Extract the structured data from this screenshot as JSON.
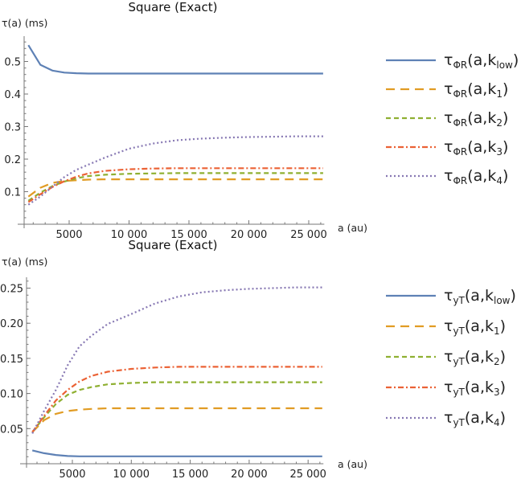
{
  "chart_data": [
    {
      "type": "line",
      "title": "Square (Exact)",
      "xlabel": "a (au)",
      "ylabel": "τ(a) (ms)",
      "xlim": [
        1300,
        26300
      ],
      "ylim": [
        0,
        0.575
      ],
      "xticks": [
        5000,
        10000,
        15000,
        20000,
        25000
      ],
      "xtick_labels": [
        "5000",
        "10 000",
        "15 000",
        "20 000",
        "25 000"
      ],
      "yticks": [
        0.1,
        0.2,
        0.3,
        0.4,
        0.5
      ],
      "ytick_labels": [
        "0.1",
        "0.2",
        "0.3",
        "0.4",
        "0.5"
      ],
      "legend_position": "right",
      "x": [
        1600,
        2600,
        3600,
        4600,
        5600,
        6600,
        8000,
        10000,
        12000,
        14000,
        16000,
        18000,
        20000,
        22000,
        24000,
        26200
      ],
      "series": [
        {
          "name": "τΦR(a,klow)",
          "label": {
            "main": "τ",
            "sub1": "ΦR",
            "arg": "(a,k",
            "sub2": "low",
            "close": ")"
          },
          "color": "#5E81B5",
          "dash": "solid",
          "values": [
            0.55,
            0.49,
            0.472,
            0.466,
            0.464,
            0.463,
            0.463,
            0.463,
            0.463,
            0.463,
            0.463,
            0.463,
            0.463,
            0.463,
            0.463,
            0.463
          ]
        },
        {
          "name": "τΦR(a,k1)",
          "label": {
            "main": "τ",
            "sub1": "ΦR",
            "arg": "(a,k",
            "sub2": "1",
            "close": ")"
          },
          "color": "#E19C24",
          "dash": "long-dash",
          "values": [
            0.085,
            0.112,
            0.127,
            0.133,
            0.135,
            0.137,
            0.138,
            0.138,
            0.138,
            0.138,
            0.138,
            0.138,
            0.138,
            0.138,
            0.138,
            0.138
          ]
        },
        {
          "name": "τΦR(a,k2)",
          "label": {
            "main": "τ",
            "sub1": "ΦR",
            "arg": "(a,k",
            "sub2": "2",
            "close": ")"
          },
          "color": "#8FB032",
          "dash": "dash",
          "values": [
            0.072,
            0.097,
            0.117,
            0.131,
            0.141,
            0.148,
            0.152,
            0.155,
            0.156,
            0.157,
            0.157,
            0.157,
            0.157,
            0.157,
            0.157,
            0.157
          ]
        },
        {
          "name": "τΦR(a,k3)",
          "label": {
            "main": "τ",
            "sub1": "ΦR",
            "arg": "(a,k",
            "sub2": "3",
            "close": ")"
          },
          "color": "#EB6235",
          "dash": "dash-dot",
          "values": [
            0.068,
            0.092,
            0.114,
            0.132,
            0.146,
            0.156,
            0.164,
            0.169,
            0.171,
            0.172,
            0.172,
            0.172,
            0.172,
            0.172,
            0.172,
            0.172
          ]
        },
        {
          "name": "τΦR(a,k4)",
          "label": {
            "main": "τ",
            "sub1": "ΦR",
            "arg": "(a,k",
            "sub2": "4",
            "close": ")"
          },
          "color": "#8778B3",
          "dash": "dot",
          "values": [
            0.06,
            0.085,
            0.115,
            0.145,
            0.167,
            0.183,
            0.205,
            0.232,
            0.248,
            0.258,
            0.263,
            0.266,
            0.268,
            0.269,
            0.27,
            0.27
          ]
        }
      ]
    },
    {
      "type": "line",
      "title": "Square (Exact)",
      "xlabel": "a (au)",
      "ylabel": "τ(a) (ms)",
      "xlim": [
        1300,
        26300
      ],
      "ylim": [
        0,
        0.264
      ],
      "xticks": [
        5000,
        10000,
        15000,
        20000,
        25000
      ],
      "xtick_labels": [
        "5000",
        "10 000",
        "15 000",
        "20 000",
        "25 000"
      ],
      "yticks": [
        0.05,
        0.1,
        0.15,
        0.2,
        0.25
      ],
      "ytick_labels": [
        "0.05",
        "0.10",
        "0.15",
        "0.20",
        "0.25"
      ],
      "legend_position": "right",
      "x": [
        1600,
        2600,
        3600,
        4600,
        5600,
        6600,
        8000,
        10000,
        12000,
        14000,
        16000,
        18000,
        20000,
        22000,
        24000,
        26200
      ],
      "series": [
        {
          "name": "τyT(a,klow)",
          "label": {
            "main": "τ",
            "sub1": "yT",
            "arg": "(a,k",
            "sub2": "low",
            "close": ")"
          },
          "color": "#5E81B5",
          "dash": "solid",
          "values": [
            0.019,
            0.015,
            0.0125,
            0.011,
            0.0105,
            0.0105,
            0.0105,
            0.0105,
            0.0105,
            0.0105,
            0.0105,
            0.0105,
            0.0105,
            0.0105,
            0.0105,
            0.0105
          ]
        },
        {
          "name": "τyT(a,k1)",
          "label": {
            "main": "τ",
            "sub1": "yT",
            "arg": "(a,k",
            "sub2": "1",
            "close": ")"
          },
          "color": "#E19C24",
          "dash": "long-dash",
          "values": [
            0.045,
            0.062,
            0.071,
            0.075,
            0.077,
            0.078,
            0.079,
            0.079,
            0.079,
            0.079,
            0.079,
            0.079,
            0.079,
            0.079,
            0.079,
            0.079
          ]
        },
        {
          "name": "τyT(a,k2)",
          "label": {
            "main": "τ",
            "sub1": "yT",
            "arg": "(a,k",
            "sub2": "2",
            "close": ")"
          },
          "color": "#8FB032",
          "dash": "dash",
          "values": [
            0.045,
            0.066,
            0.085,
            0.098,
            0.105,
            0.109,
            0.113,
            0.115,
            0.116,
            0.116,
            0.116,
            0.116,
            0.116,
            0.116,
            0.116,
            0.116
          ]
        },
        {
          "name": "τyT(a,k3)",
          "label": {
            "main": "τ",
            "sub1": "yT",
            "arg": "(a,k",
            "sub2": "3",
            "close": ")"
          },
          "color": "#EB6235",
          "dash": "dash-dot",
          "values": [
            0.045,
            0.068,
            0.09,
            0.105,
            0.117,
            0.125,
            0.131,
            0.135,
            0.137,
            0.138,
            0.138,
            0.138,
            0.138,
            0.138,
            0.138,
            0.138
          ]
        },
        {
          "name": "τyT(a,k4)",
          "label": {
            "main": "τ",
            "sub1": "yT",
            "arg": "(a,k",
            "sub2": "4",
            "close": ")"
          },
          "color": "#8778B3",
          "dash": "dot",
          "values": [
            0.043,
            0.075,
            0.105,
            0.14,
            0.167,
            0.182,
            0.199,
            0.213,
            0.228,
            0.238,
            0.244,
            0.247,
            0.249,
            0.25,
            0.251,
            0.251
          ]
        }
      ]
    }
  ]
}
